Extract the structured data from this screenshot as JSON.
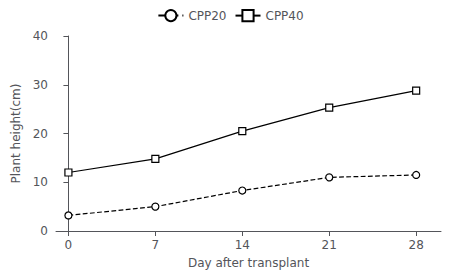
{
  "chart_data": {
    "type": "line",
    "x": [
      0,
      7,
      14,
      21,
      28
    ],
    "series": [
      {
        "name": "CPP20",
        "color": "#000000",
        "values": [
          3.2,
          5.0,
          8.3,
          11.0,
          11.5
        ],
        "line_style": "dashed",
        "marker": "circle"
      },
      {
        "name": "CPP40",
        "color": "#000000",
        "values": [
          12.0,
          14.8,
          20.5,
          25.3,
          28.8
        ],
        "line_style": "solid",
        "marker": "square"
      }
    ],
    "xlabel": "Day after transplant",
    "ylabel": "Plant height(cm)",
    "xlim": [
      -1,
      30
    ],
    "ylim": [
      0,
      40
    ],
    "xticks": [
      0,
      7,
      14,
      21,
      28
    ],
    "yticks": [
      0,
      10,
      20,
      30,
      40
    ],
    "grid": false,
    "legend": "upper center"
  }
}
